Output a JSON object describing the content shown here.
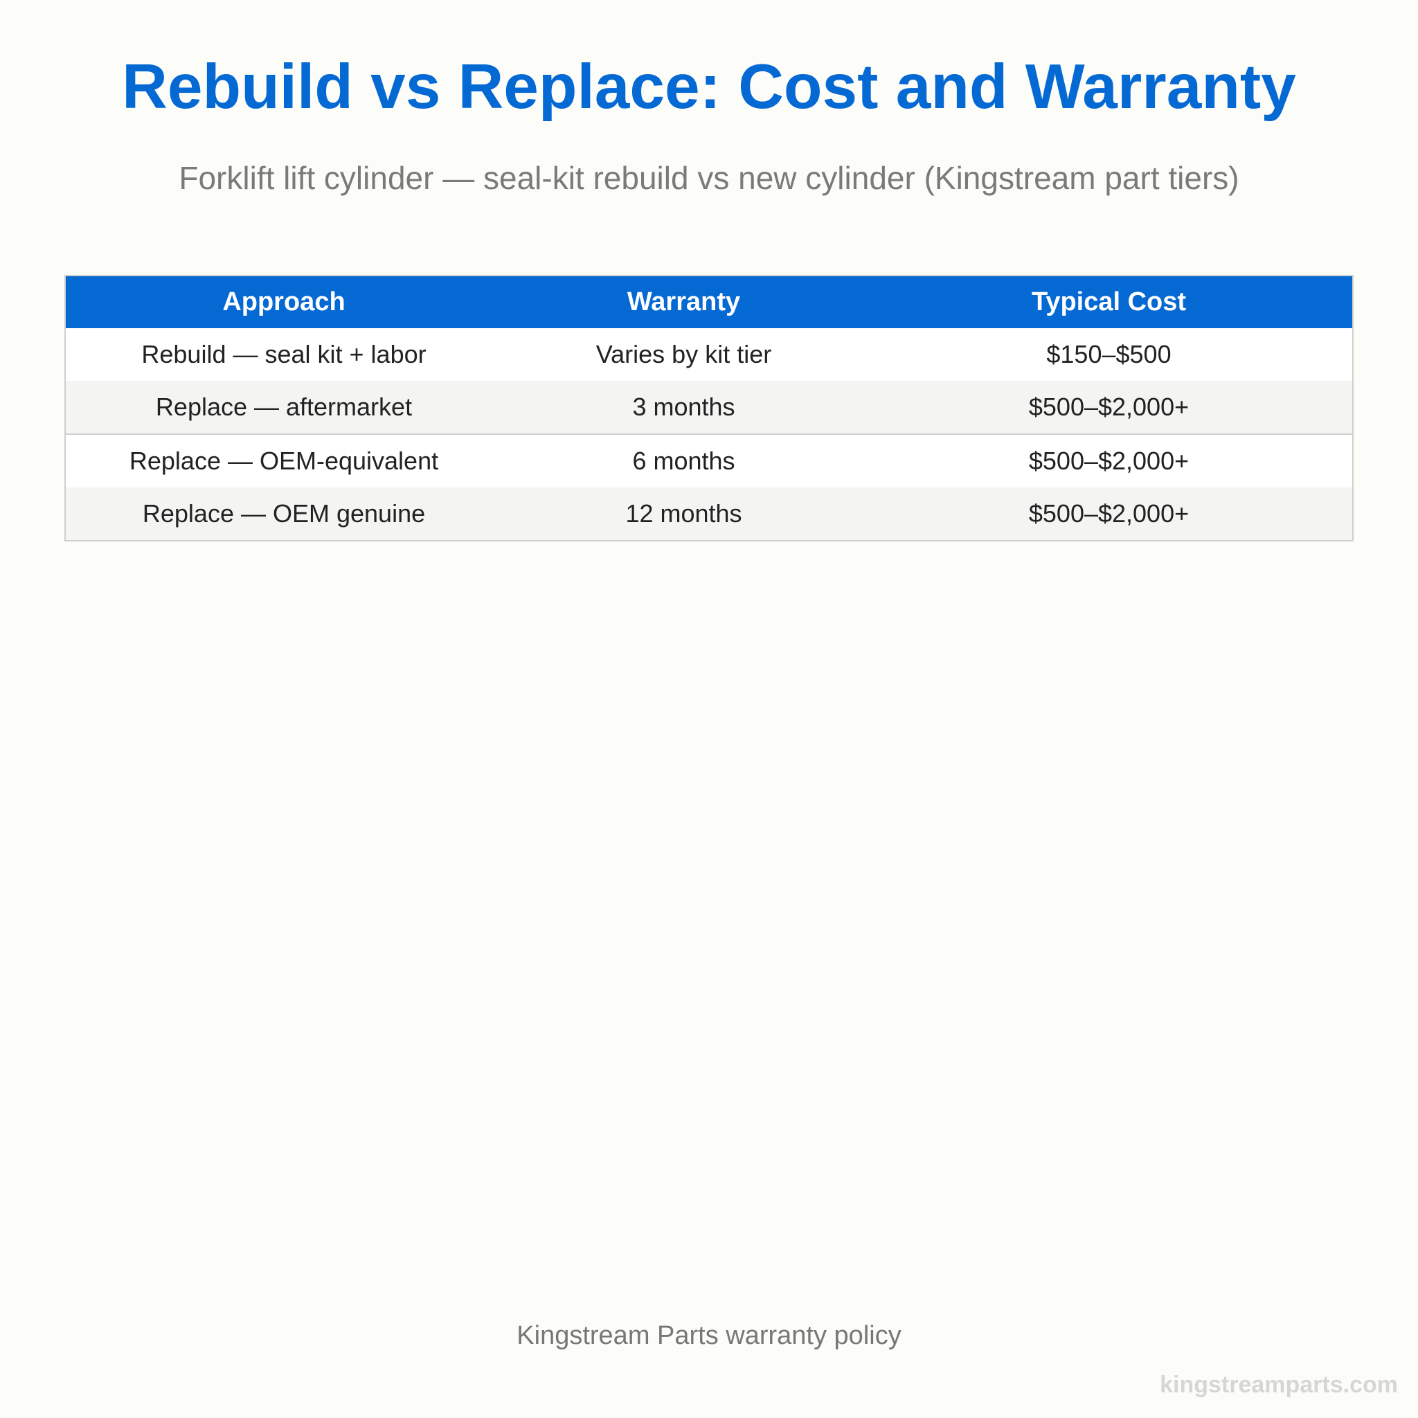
{
  "header": {
    "title": "Rebuild vs Replace: Cost and Warranty",
    "subtitle": "Forklift lift cylinder — seal-kit rebuild vs new cylinder (Kingstream part tiers)"
  },
  "table": {
    "columns": [
      "Approach",
      "Warranty",
      "Typical Cost"
    ],
    "rows": [
      [
        "Rebuild — seal kit + labor",
        "Varies by kit tier",
        "$150–$500"
      ],
      [
        "Replace — aftermarket",
        "3 months",
        "$500–$2,000+"
      ],
      [
        "Replace — OEM-equivalent",
        "6 months",
        "$500–$2,000+"
      ],
      [
        "Replace — OEM genuine",
        "12 months",
        "$500–$2,000+"
      ]
    ]
  },
  "footer": {
    "source": "Kingstream Parts warranty policy",
    "watermark": "kingstreamparts.com"
  },
  "colors": {
    "accent": "#0569d4",
    "background": "#fcfcf8",
    "row_alt": "#f4f4f2"
  }
}
